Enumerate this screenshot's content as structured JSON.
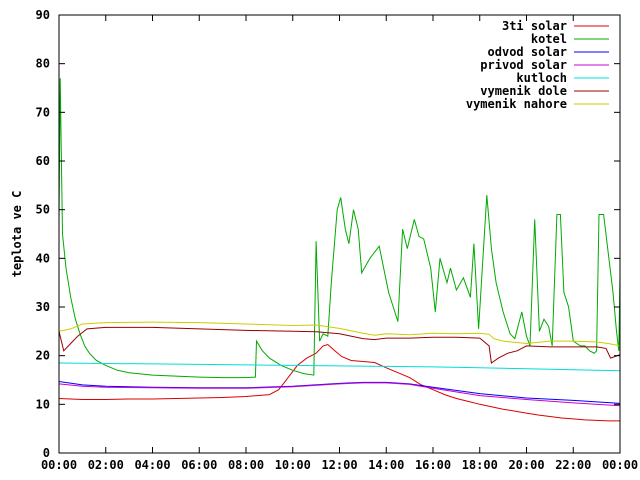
{
  "chart_data": {
    "type": "line",
    "title": "",
    "xlabel": "",
    "ylabel": "teplota ve C",
    "xlim": [
      0,
      24
    ],
    "ylim": [
      0,
      90
    ],
    "yticks": [
      0,
      10,
      20,
      30,
      40,
      50,
      60,
      70,
      80,
      90
    ],
    "xticks": [
      {
        "v": 0,
        "label": "00:00"
      },
      {
        "v": 2,
        "label": "02:00"
      },
      {
        "v": 4,
        "label": "04:00"
      },
      {
        "v": 6,
        "label": "06:00"
      },
      {
        "v": 8,
        "label": "08:00"
      },
      {
        "v": 10,
        "label": "10:00"
      },
      {
        "v": 12,
        "label": "12:00"
      },
      {
        "v": 14,
        "label": "14:00"
      },
      {
        "v": 16,
        "label": "16:00"
      },
      {
        "v": 18,
        "label": "18:00"
      },
      {
        "v": 20,
        "label": "20:00"
      },
      {
        "v": 22,
        "label": "22:00"
      },
      {
        "v": 24,
        "label": "00:00"
      }
    ],
    "grid": false,
    "legend_position": "top-right",
    "series": [
      {
        "name": "3ti solar",
        "color": "#dd0000",
        "points": [
          [
            0,
            11.2
          ],
          [
            1,
            11
          ],
          [
            2,
            11
          ],
          [
            3,
            11.1
          ],
          [
            4,
            11.1
          ],
          [
            5,
            11.2
          ],
          [
            6,
            11.3
          ],
          [
            7,
            11.4
          ],
          [
            8,
            11.6
          ],
          [
            9,
            12
          ],
          [
            9.4,
            13
          ],
          [
            9.8,
            15.5
          ],
          [
            10.2,
            18
          ],
          [
            10.6,
            19.5
          ],
          [
            11,
            20.5
          ],
          [
            11.3,
            22
          ],
          [
            11.5,
            22.3
          ],
          [
            11.8,
            21
          ],
          [
            12.1,
            19.8
          ],
          [
            12.5,
            19
          ],
          [
            13,
            18.8
          ],
          [
            13.5,
            18.6
          ],
          [
            14,
            17.5
          ],
          [
            14.5,
            16.5
          ],
          [
            15,
            15.5
          ],
          [
            15.5,
            14
          ],
          [
            16,
            13
          ],
          [
            16.5,
            12
          ],
          [
            17,
            11.2
          ],
          [
            17.5,
            10.6
          ],
          [
            18,
            10
          ],
          [
            18.5,
            9.5
          ],
          [
            19,
            9
          ],
          [
            19.5,
            8.6
          ],
          [
            20,
            8.2
          ],
          [
            20.5,
            7.8
          ],
          [
            21,
            7.5
          ],
          [
            21.5,
            7.2
          ],
          [
            22,
            7
          ],
          [
            22.5,
            6.8
          ],
          [
            23,
            6.7
          ],
          [
            23.5,
            6.6
          ],
          [
            24,
            6.6
          ]
        ]
      },
      {
        "name": "kotel",
        "color": "#00aa00",
        "points": [
          [
            0,
            48
          ],
          [
            0.05,
            77
          ],
          [
            0.15,
            45
          ],
          [
            0.3,
            38
          ],
          [
            0.5,
            32
          ],
          [
            0.7,
            27.5
          ],
          [
            0.9,
            24.5
          ],
          [
            1.1,
            22
          ],
          [
            1.3,
            20.5
          ],
          [
            1.6,
            19
          ],
          [
            2,
            18
          ],
          [
            2.5,
            17
          ],
          [
            3,
            16.5
          ],
          [
            4,
            16
          ],
          [
            5,
            15.8
          ],
          [
            6,
            15.6
          ],
          [
            7,
            15.5
          ],
          [
            8,
            15.5
          ],
          [
            8.4,
            15.6
          ],
          [
            8.45,
            23
          ],
          [
            8.7,
            21
          ],
          [
            9,
            19.5
          ],
          [
            9.5,
            18
          ],
          [
            10,
            17
          ],
          [
            10.5,
            16.3
          ],
          [
            10.9,
            16
          ],
          [
            11,
            43.5
          ],
          [
            11.15,
            23
          ],
          [
            11.3,
            24.5
          ],
          [
            11.5,
            24
          ],
          [
            11.65,
            35
          ],
          [
            11.9,
            50
          ],
          [
            12.05,
            52.5
          ],
          [
            12.25,
            46
          ],
          [
            12.4,
            43
          ],
          [
            12.6,
            50
          ],
          [
            12.8,
            46
          ],
          [
            12.95,
            37
          ],
          [
            13.3,
            40
          ],
          [
            13.7,
            42.5
          ],
          [
            14.1,
            33
          ],
          [
            14.5,
            27
          ],
          [
            14.7,
            46
          ],
          [
            14.9,
            42
          ],
          [
            15.2,
            48
          ],
          [
            15.4,
            44.5
          ],
          [
            15.6,
            44
          ],
          [
            15.9,
            38
          ],
          [
            16.1,
            29
          ],
          [
            16.3,
            40
          ],
          [
            16.6,
            35
          ],
          [
            16.75,
            38
          ],
          [
            17,
            33.5
          ],
          [
            17.3,
            36
          ],
          [
            17.6,
            32
          ],
          [
            17.75,
            43
          ],
          [
            17.95,
            25.5
          ],
          [
            18.3,
            53
          ],
          [
            18.5,
            42
          ],
          [
            18.7,
            35
          ],
          [
            19,
            29
          ],
          [
            19.3,
            24.5
          ],
          [
            19.5,
            23.5
          ],
          [
            19.8,
            29
          ],
          [
            20,
            24
          ],
          [
            20.15,
            22
          ],
          [
            20.35,
            48
          ],
          [
            20.55,
            25
          ],
          [
            20.75,
            27.5
          ],
          [
            20.95,
            26
          ],
          [
            21.1,
            22
          ],
          [
            21.3,
            49
          ],
          [
            21.45,
            49
          ],
          [
            21.6,
            33
          ],
          [
            21.8,
            30
          ],
          [
            22,
            23
          ],
          [
            22.3,
            22
          ],
          [
            22.5,
            22
          ],
          [
            22.7,
            21
          ],
          [
            22.9,
            20.5
          ],
          [
            23,
            21
          ],
          [
            23.1,
            49
          ],
          [
            23.3,
            49
          ],
          [
            23.5,
            41
          ],
          [
            23.7,
            33
          ],
          [
            23.85,
            25
          ],
          [
            23.95,
            21
          ],
          [
            24.05,
            52
          ],
          [
            24.3,
            34
          ]
        ]
      },
      {
        "name": "odvod solar",
        "color": "#0000ff",
        "points": [
          [
            0,
            14.7
          ],
          [
            1,
            14
          ],
          [
            2,
            13.7
          ],
          [
            4,
            13.5
          ],
          [
            6,
            13.4
          ],
          [
            8,
            13.4
          ],
          [
            10,
            13.7
          ],
          [
            12,
            14.3
          ],
          [
            13,
            14.5
          ],
          [
            14,
            14.5
          ],
          [
            15,
            14.2
          ],
          [
            16,
            13.5
          ],
          [
            18,
            12.2
          ],
          [
            20,
            11.3
          ],
          [
            22,
            10.8
          ],
          [
            24,
            10.2
          ]
        ]
      },
      {
        "name": "privod solar",
        "color": "#cc00cc",
        "points": [
          [
            0,
            14.2
          ],
          [
            1,
            13.7
          ],
          [
            2,
            13.5
          ],
          [
            4,
            13.4
          ],
          [
            6,
            13.3
          ],
          [
            8,
            13.3
          ],
          [
            10,
            13.6
          ],
          [
            12,
            14.2
          ],
          [
            13,
            14.4
          ],
          [
            14,
            14.4
          ],
          [
            15,
            14.1
          ],
          [
            16,
            13.3
          ],
          [
            18,
            11.8
          ],
          [
            20,
            11
          ],
          [
            22,
            10.3
          ],
          [
            24,
            9.7
          ]
        ]
      },
      {
        "name": "kutloch",
        "color": "#00dddd",
        "points": [
          [
            0,
            18.5
          ],
          [
            2,
            18.4
          ],
          [
            4,
            18.3
          ],
          [
            6,
            18.2
          ],
          [
            8,
            18.1
          ],
          [
            10,
            18
          ],
          [
            12,
            17.9
          ],
          [
            14,
            17.8
          ],
          [
            16,
            17.7
          ],
          [
            18,
            17.5
          ],
          [
            20,
            17.3
          ],
          [
            22,
            17.1
          ],
          [
            24,
            16.9
          ]
        ]
      },
      {
        "name": "vymenik dole",
        "color": "#990000",
        "points": [
          [
            0,
            25
          ],
          [
            0.2,
            21
          ],
          [
            0.5,
            22.5
          ],
          [
            0.8,
            24
          ],
          [
            1.2,
            25.5
          ],
          [
            2,
            25.8
          ],
          [
            4,
            25.8
          ],
          [
            6,
            25.5
          ],
          [
            8,
            25.2
          ],
          [
            10,
            25
          ],
          [
            11,
            24.9
          ],
          [
            12,
            24.5
          ],
          [
            13,
            23.5
          ],
          [
            13.5,
            23.3
          ],
          [
            14,
            23.6
          ],
          [
            15,
            23.6
          ],
          [
            16,
            23.8
          ],
          [
            17,
            23.8
          ],
          [
            18,
            23.6
          ],
          [
            18.4,
            22
          ],
          [
            18.5,
            18.5
          ],
          [
            18.8,
            19.5
          ],
          [
            19.2,
            20.5
          ],
          [
            19.6,
            21
          ],
          [
            20,
            22
          ],
          [
            21,
            21.8
          ],
          [
            22,
            21.8
          ],
          [
            23,
            21.8
          ],
          [
            23.4,
            21.5
          ],
          [
            23.6,
            19.5
          ],
          [
            24,
            20.2
          ],
          [
            24.3,
            20
          ]
        ]
      },
      {
        "name": "vymenik nahore",
        "color": "#cccc00",
        "points": [
          [
            0,
            25
          ],
          [
            0.5,
            25.5
          ],
          [
            1,
            26.5
          ],
          [
            2,
            26.8
          ],
          [
            4,
            26.9
          ],
          [
            6,
            26.8
          ],
          [
            8,
            26.5
          ],
          [
            10,
            26.2
          ],
          [
            11,
            26.3
          ],
          [
            12,
            25.6
          ],
          [
            13,
            24.6
          ],
          [
            13.5,
            24.2
          ],
          [
            14,
            24.5
          ],
          [
            15,
            24.3
          ],
          [
            16,
            24.6
          ],
          [
            17,
            24.5
          ],
          [
            18,
            24.6
          ],
          [
            18.4,
            24.4
          ],
          [
            18.6,
            23.5
          ],
          [
            19,
            23
          ],
          [
            20,
            22.5
          ],
          [
            21,
            23
          ],
          [
            22,
            23
          ],
          [
            23,
            22.8
          ],
          [
            23.5,
            22.5
          ],
          [
            24,
            22
          ],
          [
            24.3,
            21.8
          ]
        ]
      }
    ]
  }
}
